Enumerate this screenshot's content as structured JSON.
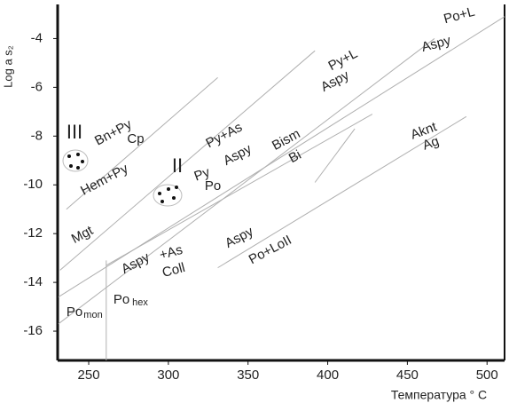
{
  "chart_data": {
    "type": "line",
    "x_label": "Температура ° С",
    "y_label": "Log a s₂",
    "xlim": [
      230.5,
      511
    ],
    "ylim": [
      -17.2,
      -2.6
    ],
    "xticks": [
      250,
      300,
      350,
      400,
      450,
      500
    ],
    "yticks": [
      -4,
      -6,
      -8,
      -10,
      -12,
      -14,
      -16
    ],
    "color": "#b0b0b0",
    "series": [
      {
        "x": [
          236,
          331
        ],
        "values": [
          -11.0,
          -5.6
        ]
      },
      {
        "x": [
          232,
          392
        ],
        "values": [
          -13.5,
          -4.5
        ]
      },
      {
        "x": [
          231,
          511
        ],
        "values": [
          -14.6,
          -3.1
        ]
      },
      {
        "x": [
          231,
          467
        ],
        "values": [
          -15.7,
          -4.0
        ]
      },
      {
        "x": [
          261,
          428
        ],
        "values": [
          -13.3,
          -7.1
        ]
      },
      {
        "x": [
          331,
          487
        ],
        "values": [
          -13.4,
          -7.2
        ]
      },
      {
        "x": [
          392,
          417
        ],
        "values": [
          -9.9,
          -7.7
        ]
      },
      {
        "x": [
          261,
          261
        ],
        "values": [
          -13.1,
          -17.2
        ]
      }
    ],
    "annotations": [
      "Po+L",
      "Aspy",
      "Py+L",
      "Aspy",
      "Py+As",
      "Aspy",
      "Bism",
      "Bi",
      "Bn+Py",
      "Cp",
      "III",
      "II",
      "Py",
      "Po",
      "Hem+Py",
      "Mgt",
      "Aknt",
      "Ag",
      "Aspy",
      "Po+LoII",
      "Aspy",
      "+As",
      "Coll",
      "Po",
      "mon",
      "Po",
      "hex"
    ]
  }
}
